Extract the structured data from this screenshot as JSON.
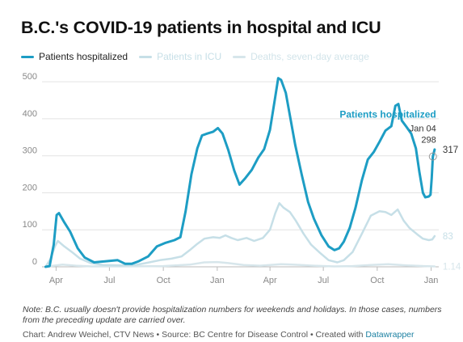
{
  "title": "B.C.'s COVID-19 patients in hospital and ICU",
  "colors": {
    "hospital": "#1d9dc4",
    "icu": "#c6dfe7",
    "deaths": "#d7e6eb",
    "grid": "#e3e3e3",
    "axis_text": "#888888",
    "credit_link": "#1d81a2"
  },
  "chart_data": {
    "type": "line",
    "x_axis": {
      "type": "date",
      "ticks": [
        "Apr",
        "Jul",
        "Oct",
        "Jan",
        "Apr",
        "Jul",
        "Oct",
        "Jan"
      ]
    },
    "y_axis": {
      "ticks": [
        "0",
        "100",
        "200",
        "300",
        "400",
        "500"
      ],
      "ylim": [
        0,
        520
      ]
    },
    "grid": true,
    "legend_placement": "top-left",
    "x_range": [
      "2020-03-08",
      "2022-01-14"
    ],
    "series": [
      {
        "name": "Patients hospitalized",
        "color": "#1d9dc4",
        "end_label": "317",
        "points": [
          [
            "2020-03-14",
            0
          ],
          [
            "2020-03-21",
            2
          ],
          [
            "2020-03-28",
            60
          ],
          [
            "2020-04-02",
            140
          ],
          [
            "2020-04-06",
            145
          ],
          [
            "2020-04-15",
            120
          ],
          [
            "2020-04-25",
            95
          ],
          [
            "2020-05-08",
            50
          ],
          [
            "2020-05-20",
            25
          ],
          [
            "2020-06-05",
            12
          ],
          [
            "2020-06-25",
            15
          ],
          [
            "2020-07-15",
            18
          ],
          [
            "2020-07-28",
            8
          ],
          [
            "2020-08-08",
            8
          ],
          [
            "2020-08-20",
            15
          ],
          [
            "2020-09-05",
            28
          ],
          [
            "2020-09-20",
            55
          ],
          [
            "2020-10-05",
            65
          ],
          [
            "2020-10-20",
            72
          ],
          [
            "2020-10-30",
            80
          ],
          [
            "2020-11-08",
            150
          ],
          [
            "2020-11-18",
            250
          ],
          [
            "2020-11-28",
            320
          ],
          [
            "2020-12-06",
            355
          ],
          [
            "2020-12-15",
            360
          ],
          [
            "2020-12-25",
            365
          ],
          [
            "2021-01-02",
            375
          ],
          [
            "2021-01-10",
            360
          ],
          [
            "2021-01-20",
            315
          ],
          [
            "2021-01-30",
            260
          ],
          [
            "2021-02-08",
            222
          ],
          [
            "2021-02-18",
            240
          ],
          [
            "2021-03-01",
            262
          ],
          [
            "2021-03-12",
            295
          ],
          [
            "2021-03-22",
            318
          ],
          [
            "2021-04-01",
            370
          ],
          [
            "2021-04-10",
            460
          ],
          [
            "2021-04-15",
            510
          ],
          [
            "2021-04-20",
            505
          ],
          [
            "2021-04-28",
            470
          ],
          [
            "2021-05-06",
            400
          ],
          [
            "2021-05-14",
            330
          ],
          [
            "2021-05-25",
            250
          ],
          [
            "2021-06-05",
            175
          ],
          [
            "2021-06-15",
            130
          ],
          [
            "2021-06-28",
            85
          ],
          [
            "2021-07-10",
            55
          ],
          [
            "2021-07-20",
            45
          ],
          [
            "2021-07-28",
            50
          ],
          [
            "2021-08-05",
            68
          ],
          [
            "2021-08-15",
            105
          ],
          [
            "2021-08-25",
            160
          ],
          [
            "2021-09-05",
            235
          ],
          [
            "2021-09-15",
            290
          ],
          [
            "2021-09-25",
            310
          ],
          [
            "2021-10-05",
            338
          ],
          [
            "2021-10-15",
            368
          ],
          [
            "2021-10-25",
            380
          ],
          [
            "2021-11-01",
            435
          ],
          [
            "2021-11-06",
            440
          ],
          [
            "2021-11-12",
            395
          ],
          [
            "2021-11-20",
            378
          ],
          [
            "2021-11-28",
            360
          ],
          [
            "2021-12-06",
            320
          ],
          [
            "2021-12-12",
            255
          ],
          [
            "2021-12-18",
            200
          ],
          [
            "2021-12-22",
            188
          ],
          [
            "2021-12-28",
            190
          ],
          [
            "2021-12-31",
            195
          ],
          [
            "2022-01-02",
            240
          ],
          [
            "2022-01-04",
            298
          ],
          [
            "2022-01-07",
            317
          ]
        ]
      },
      {
        "name": "Patients in ICU",
        "color": "#c6dfe7",
        "end_label": "83",
        "points": [
          [
            "2020-03-14",
            0
          ],
          [
            "2020-03-22",
            20
          ],
          [
            "2020-03-30",
            55
          ],
          [
            "2020-04-04",
            70
          ],
          [
            "2020-04-15",
            55
          ],
          [
            "2020-04-28",
            40
          ],
          [
            "2020-05-12",
            22
          ],
          [
            "2020-05-30",
            10
          ],
          [
            "2020-06-20",
            5
          ],
          [
            "2020-07-20",
            4
          ],
          [
            "2020-08-15",
            5
          ],
          [
            "2020-09-01",
            10
          ],
          [
            "2020-09-25",
            18
          ],
          [
            "2020-10-15",
            22
          ],
          [
            "2020-11-01",
            28
          ],
          [
            "2020-11-15",
            45
          ],
          [
            "2020-11-28",
            62
          ],
          [
            "2020-12-10",
            76
          ],
          [
            "2020-12-25",
            80
          ],
          [
            "2021-01-05",
            78
          ],
          [
            "2021-01-15",
            85
          ],
          [
            "2021-01-25",
            78
          ],
          [
            "2021-02-05",
            72
          ],
          [
            "2021-02-20",
            78
          ],
          [
            "2021-03-05",
            70
          ],
          [
            "2021-03-20",
            78
          ],
          [
            "2021-04-01",
            100
          ],
          [
            "2021-04-10",
            145
          ],
          [
            "2021-04-17",
            172
          ],
          [
            "2021-04-24",
            160
          ],
          [
            "2021-05-05",
            148
          ],
          [
            "2021-05-15",
            125
          ],
          [
            "2021-05-28",
            90
          ],
          [
            "2021-06-10",
            60
          ],
          [
            "2021-06-25",
            38
          ],
          [
            "2021-07-10",
            18
          ],
          [
            "2021-07-25",
            12
          ],
          [
            "2021-08-05",
            18
          ],
          [
            "2021-08-20",
            40
          ],
          [
            "2021-09-05",
            90
          ],
          [
            "2021-09-20",
            138
          ],
          [
            "2021-10-05",
            150
          ],
          [
            "2021-10-15",
            148
          ],
          [
            "2021-10-25",
            140
          ],
          [
            "2021-11-05",
            155
          ],
          [
            "2021-11-15",
            125
          ],
          [
            "2021-11-25",
            105
          ],
          [
            "2021-12-08",
            88
          ],
          [
            "2021-12-18",
            76
          ],
          [
            "2021-12-28",
            72
          ],
          [
            "2022-01-03",
            74
          ],
          [
            "2022-01-07",
            83
          ]
        ]
      },
      {
        "name": "Deaths, seven-day average",
        "color": "#d7e6eb",
        "end_label": "1.14",
        "points": [
          [
            "2020-03-14",
            0
          ],
          [
            "2020-03-28",
            3
          ],
          [
            "2020-04-12",
            6
          ],
          [
            "2020-05-05",
            3
          ],
          [
            "2020-06-01",
            1
          ],
          [
            "2020-08-01",
            1
          ],
          [
            "2020-10-01",
            2
          ],
          [
            "2020-11-15",
            6
          ],
          [
            "2020-12-10",
            12
          ],
          [
            "2021-01-01",
            13
          ],
          [
            "2021-01-20",
            10
          ],
          [
            "2021-02-15",
            5
          ],
          [
            "2021-03-15",
            3
          ],
          [
            "2021-04-20",
            7
          ],
          [
            "2021-05-10",
            6
          ],
          [
            "2021-06-15",
            3
          ],
          [
            "2021-07-20",
            1
          ],
          [
            "2021-08-20",
            2
          ],
          [
            "2021-09-20",
            5
          ],
          [
            "2021-10-20",
            7
          ],
          [
            "2021-11-20",
            4
          ],
          [
            "2021-12-20",
            2
          ],
          [
            "2022-01-07",
            1.14
          ]
        ]
      }
    ],
    "annotation": {
      "series_label": "Patients hospitalized",
      "date_label": "Jan 04",
      "value_label": "298",
      "x": "2022-01-04",
      "y": 298
    }
  },
  "legend": [
    {
      "label": "Patients hospitalized",
      "color": "#1d9dc4",
      "label_color": "#222222"
    },
    {
      "label": "Patients in ICU",
      "color": "#c6dfe7",
      "label_color": "#c6dfe7"
    },
    {
      "label": "Deaths, seven-day average",
      "color": "#d7e6eb",
      "label_color": "#d2e4ea"
    }
  ],
  "note": "Note: B.C. usually doesn't provide hospitalization numbers for weekends and holidays. In those cases, numbers from the preceding update are carried over.",
  "credit_prefix": "Chart: Andrew Weichel, CTV News • Source: BC Centre for Disease Control • Created with ",
  "credit_link": "Datawrapper"
}
